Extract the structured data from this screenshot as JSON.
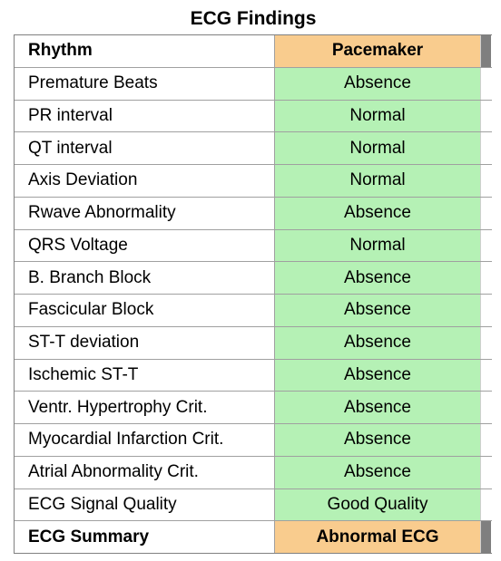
{
  "title": "ECG Findings",
  "header": {
    "label": "Rhythm",
    "value": "Pacemaker"
  },
  "rows": [
    {
      "label": "Premature Beats",
      "value": "Absence"
    },
    {
      "label": "PR interval",
      "value": "Normal"
    },
    {
      "label": "QT interval",
      "value": "Normal"
    },
    {
      "label": "Axis Deviation",
      "value": "Normal"
    },
    {
      "label": "Rwave Abnormality",
      "value": "Absence"
    },
    {
      "label": "QRS Voltage",
      "value": "Normal"
    },
    {
      "label": "B. Branch Block",
      "value": "Absence"
    },
    {
      "label": "Fascicular Block",
      "value": "Absence"
    },
    {
      "label": "ST-T deviation",
      "value": "Absence"
    },
    {
      "label": "Ischemic ST-T",
      "value": "Absence"
    },
    {
      "label": "Ventr. Hypertrophy Crit.",
      "value": "Absence"
    },
    {
      "label": "Myocardial Infarction Crit.",
      "value": "Absence"
    },
    {
      "label": "Atrial Abnormality Crit.",
      "value": "Absence"
    },
    {
      "label": "ECG Signal Quality",
      "value": "Good Quality"
    }
  ],
  "summary": {
    "label": "ECG Summary",
    "value": "Abnormal ECG"
  },
  "colors": {
    "highlight": "#f9cc8e",
    "normal": "#b5f1b5",
    "edge": "#7f7f7f"
  }
}
